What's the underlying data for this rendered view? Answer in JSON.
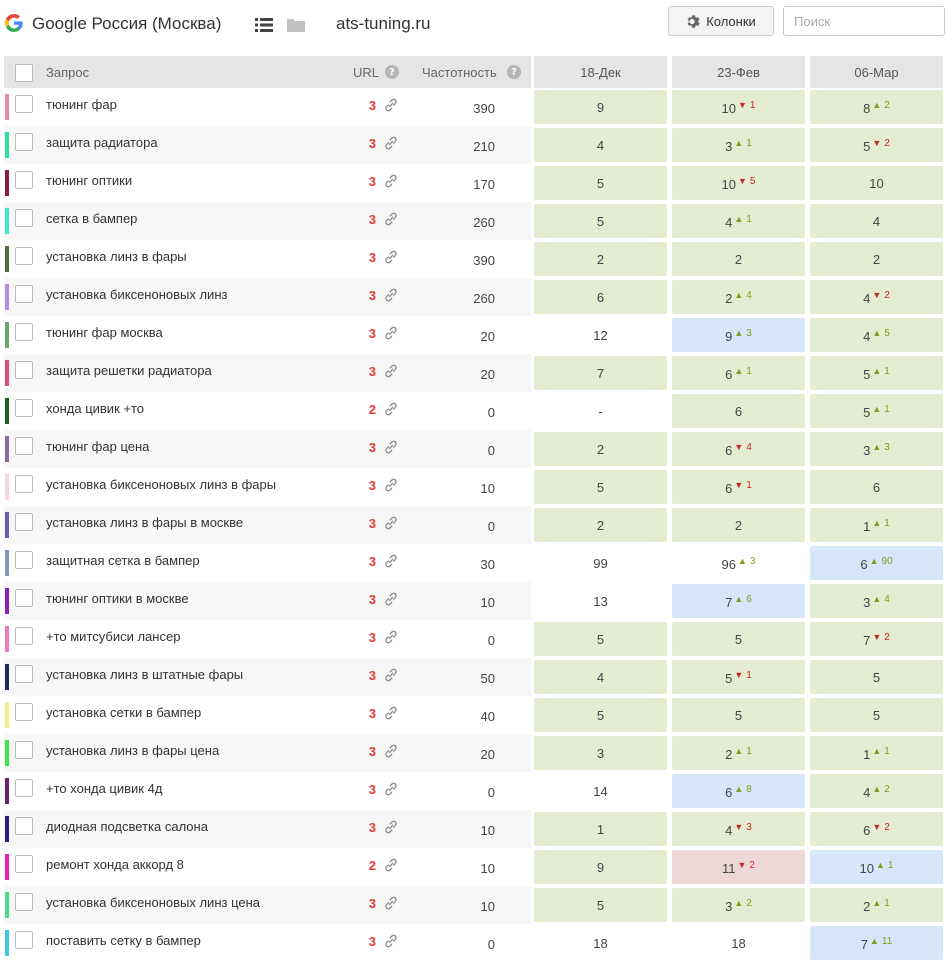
{
  "header": {
    "engine_label": "Google Россия (Москва)",
    "domain": "ats-tuning.ru",
    "columns_button": "Колонки",
    "search_placeholder": "Поиск"
  },
  "table": {
    "col_query": "Запрос",
    "col_url": "URL",
    "col_freq": "Частотность",
    "dates": [
      "18-Дек",
      "23-Фев",
      "06-Мар"
    ],
    "rows": [
      {
        "color": "#e88aa0",
        "query": "тюнинг фар",
        "url": "3",
        "freq": "390",
        "p": [
          {
            "v": "9",
            "bg": "green"
          },
          {
            "v": "10",
            "d": "1",
            "dir": "down",
            "bg": "green"
          },
          {
            "v": "8",
            "d": "2",
            "dir": "up",
            "bg": "green"
          }
        ]
      },
      {
        "color": "#2ee09a",
        "query": "защита радиатора",
        "url": "3",
        "freq": "210",
        "p": [
          {
            "v": "4",
            "bg": "green"
          },
          {
            "v": "3",
            "d": "1",
            "dir": "up",
            "bg": "green"
          },
          {
            "v": "5",
            "d": "2",
            "dir": "down",
            "bg": "green"
          }
        ]
      },
      {
        "color": "#8c1d3a",
        "query": "тюнинг оптики",
        "url": "3",
        "freq": "170",
        "p": [
          {
            "v": "5",
            "bg": "green"
          },
          {
            "v": "10",
            "d": "5",
            "dir": "down",
            "bg": "green"
          },
          {
            "v": "10",
            "bg": "green"
          }
        ]
      },
      {
        "color": "#3ee6cf",
        "query": "сетка в бампер",
        "url": "3",
        "freq": "260",
        "p": [
          {
            "v": "5",
            "bg": "green"
          },
          {
            "v": "4",
            "d": "1",
            "dir": "up",
            "bg": "green"
          },
          {
            "v": "4",
            "bg": "green"
          }
        ]
      },
      {
        "color": "#4d6b3a",
        "query": "установка линз в фары",
        "url": "3",
        "freq": "390",
        "p": [
          {
            "v": "2",
            "bg": "green"
          },
          {
            "v": "2",
            "bg": "green"
          },
          {
            "v": "2",
            "bg": "green"
          }
        ]
      },
      {
        "color": "#b38de6",
        "query": "установка биксеноновых линз",
        "url": "3",
        "freq": "260",
        "p": [
          {
            "v": "6",
            "bg": "green"
          },
          {
            "v": "2",
            "d": "4",
            "dir": "up",
            "bg": "green"
          },
          {
            "v": "4",
            "d": "2",
            "dir": "down",
            "bg": "green"
          }
        ]
      },
      {
        "color": "#6aa86a",
        "query": "тюнинг фар москва",
        "url": "3",
        "freq": "20",
        "p": [
          {
            "v": "12",
            "bg": "none"
          },
          {
            "v": "9",
            "d": "3",
            "dir": "up",
            "bg": "blue"
          },
          {
            "v": "4",
            "d": "5",
            "dir": "up",
            "bg": "green"
          }
        ]
      },
      {
        "color": "#d94f7a",
        "query": "защита решетки радиатора",
        "url": "3",
        "freq": "20",
        "p": [
          {
            "v": "7",
            "bg": "green"
          },
          {
            "v": "6",
            "d": "1",
            "dir": "up",
            "bg": "green"
          },
          {
            "v": "5",
            "d": "1",
            "dir": "up",
            "bg": "green"
          }
        ]
      },
      {
        "color": "#1f5c1f",
        "query": "хонда цивик +то",
        "url": "2",
        "freq": "0",
        "p": [
          {
            "v": "-",
            "bg": "none"
          },
          {
            "v": "6",
            "bg": "green"
          },
          {
            "v": "5",
            "d": "1",
            "dir": "up",
            "bg": "green"
          }
        ]
      },
      {
        "color": "#8a6ba0",
        "query": "тюнинг фар цена",
        "url": "3",
        "freq": "0",
        "p": [
          {
            "v": "2",
            "bg": "green"
          },
          {
            "v": "6",
            "d": "4",
            "dir": "down",
            "bg": "green"
          },
          {
            "v": "3",
            "d": "3",
            "dir": "up",
            "bg": "green"
          }
        ]
      },
      {
        "color": "#f5d6e6",
        "query": "установка биксеноновых линз в фары",
        "url": "3",
        "freq": "10",
        "p": [
          {
            "v": "5",
            "bg": "green"
          },
          {
            "v": "6",
            "d": "1",
            "dir": "down",
            "bg": "green"
          },
          {
            "v": "6",
            "bg": "green"
          }
        ]
      },
      {
        "color": "#6a5ac2",
        "query": "установка линз в фары в москве",
        "url": "3",
        "freq": "0",
        "p": [
          {
            "v": "2",
            "bg": "green"
          },
          {
            "v": "2",
            "bg": "green"
          },
          {
            "v": "1",
            "d": "1",
            "dir": "up",
            "bg": "green"
          }
        ]
      },
      {
        "color": "#7f9ab8",
        "query": "защитная сетка в бампер",
        "url": "3",
        "freq": "30",
        "p": [
          {
            "v": "99",
            "bg": "none"
          },
          {
            "v": "96",
            "d": "3",
            "dir": "up",
            "bg": "none"
          },
          {
            "v": "6",
            "d": "90",
            "dir": "up",
            "bg": "blue"
          }
        ]
      },
      {
        "color": "#8a1fb8",
        "query": "тюнинг оптики в москве",
        "url": "3",
        "freq": "10",
        "p": [
          {
            "v": "13",
            "bg": "none"
          },
          {
            "v": "7",
            "d": "6",
            "dir": "up",
            "bg": "blue"
          },
          {
            "v": "3",
            "d": "4",
            "dir": "up",
            "bg": "green"
          }
        ]
      },
      {
        "color": "#f07ac2",
        "query": "+то митсубиси лансер",
        "url": "3",
        "freq": "0",
        "p": [
          {
            "v": "5",
            "bg": "green"
          },
          {
            "v": "5",
            "bg": "green"
          },
          {
            "v": "7",
            "d": "2",
            "dir": "down",
            "bg": "green"
          }
        ]
      },
      {
        "color": "#1f2a5c",
        "query": "установка линз в штатные фары",
        "url": "3",
        "freq": "50",
        "p": [
          {
            "v": "4",
            "bg": "green"
          },
          {
            "v": "5",
            "d": "1",
            "dir": "down",
            "bg": "green"
          },
          {
            "v": "5",
            "bg": "green"
          }
        ]
      },
      {
        "color": "#f2ee8a",
        "query": "установка сетки в бампер",
        "url": "3",
        "freq": "40",
        "p": [
          {
            "v": "5",
            "bg": "green"
          },
          {
            "v": "5",
            "bg": "green"
          },
          {
            "v": "5",
            "bg": "green"
          }
        ]
      },
      {
        "color": "#3ee64a",
        "query": "установка линз в фары цена",
        "url": "3",
        "freq": "20",
        "p": [
          {
            "v": "3",
            "bg": "green"
          },
          {
            "v": "2",
            "d": "1",
            "dir": "up",
            "bg": "green"
          },
          {
            "v": "1",
            "d": "1",
            "dir": "up",
            "bg": "green"
          }
        ]
      },
      {
        "color": "#6a1f6a",
        "query": "+то хонда цивик 4д",
        "url": "3",
        "freq": "0",
        "p": [
          {
            "v": "14",
            "bg": "none"
          },
          {
            "v": "6",
            "d": "8",
            "dir": "up",
            "bg": "blue"
          },
          {
            "v": "4",
            "d": "2",
            "dir": "up",
            "bg": "green"
          }
        ]
      },
      {
        "color": "#2a1f8a",
        "query": "диодная подсветка салона",
        "url": "3",
        "freq": "10",
        "p": [
          {
            "v": "1",
            "bg": "green"
          },
          {
            "v": "4",
            "d": "3",
            "dir": "down",
            "bg": "green"
          },
          {
            "v": "6",
            "d": "2",
            "dir": "down",
            "bg": "green"
          }
        ]
      },
      {
        "color": "#e61fb8",
        "query": "ремонт хонда аккорд 8",
        "url": "2",
        "freq": "10",
        "p": [
          {
            "v": "9",
            "bg": "green"
          },
          {
            "v": "11",
            "d": "2",
            "dir": "down",
            "bg": "red"
          },
          {
            "v": "10",
            "d": "1",
            "dir": "up",
            "bg": "blue"
          }
        ]
      },
      {
        "color": "#4ed98a",
        "query": "установка биксеноновых линз цена",
        "url": "3",
        "freq": "10",
        "p": [
          {
            "v": "5",
            "bg": "green"
          },
          {
            "v": "3",
            "d": "2",
            "dir": "up",
            "bg": "green"
          },
          {
            "v": "2",
            "d": "1",
            "dir": "up",
            "bg": "green"
          }
        ]
      },
      {
        "color": "#3ec8e6",
        "query": "поставить сетку в бампер",
        "url": "3",
        "freq": "0",
        "p": [
          {
            "v": "18",
            "bg": "none"
          },
          {
            "v": "18",
            "bg": "none"
          },
          {
            "v": "7",
            "d": "11",
            "dir": "up",
            "bg": "blue"
          }
        ]
      }
    ]
  }
}
